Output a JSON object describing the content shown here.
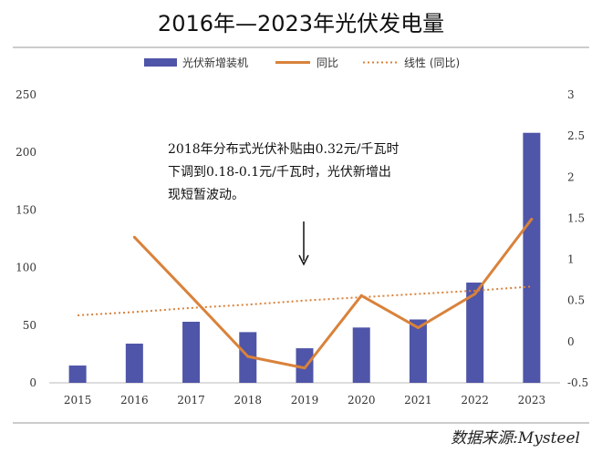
{
  "chart_data": {
    "type": "bar",
    "title": "2016年—2023年光伏发电量",
    "categories": [
      "2015",
      "2016",
      "2017",
      "2018",
      "2019",
      "2020",
      "2021",
      "2022",
      "2023"
    ],
    "series": [
      {
        "name": "光伏新增装机",
        "type": "bar",
        "axis": "left",
        "color": "#4f55a8",
        "values": [
          15,
          34,
          53,
          44,
          30,
          48,
          55,
          87,
          217
        ]
      },
      {
        "name": "同比",
        "type": "line",
        "axis": "right",
        "color": "#d9823b",
        "values": [
          null,
          1.27,
          0.55,
          -0.18,
          -0.32,
          0.56,
          0.17,
          0.58,
          1.49
        ]
      },
      {
        "name": "线性 (同比)",
        "type": "trendline",
        "axis": "right",
        "color": "#d9823b",
        "values": [
          0.32,
          0.36,
          0.41,
          0.45,
          0.5,
          0.54,
          0.58,
          0.62,
          0.67
        ]
      }
    ],
    "y_left": {
      "min": 0,
      "max": 250,
      "ticks": [
        "0",
        "50",
        "100",
        "150",
        "200",
        "250"
      ]
    },
    "y_right": {
      "min": -0.5,
      "max": 3,
      "ticks": [
        "-0.5",
        "0",
        "0.5",
        "1",
        "1.5",
        "2",
        "2.5",
        "3"
      ]
    },
    "legend_position": "top",
    "grid": false,
    "annotation": {
      "lines": [
        "2018年分布式光伏补贴由0.32元/千瓦时",
        "下调到0.18-0.1元/千瓦时，光伏新增出",
        "现短暂波动。"
      ],
      "arrow_category": "2019"
    },
    "source": "数据来源:Mysteel"
  }
}
